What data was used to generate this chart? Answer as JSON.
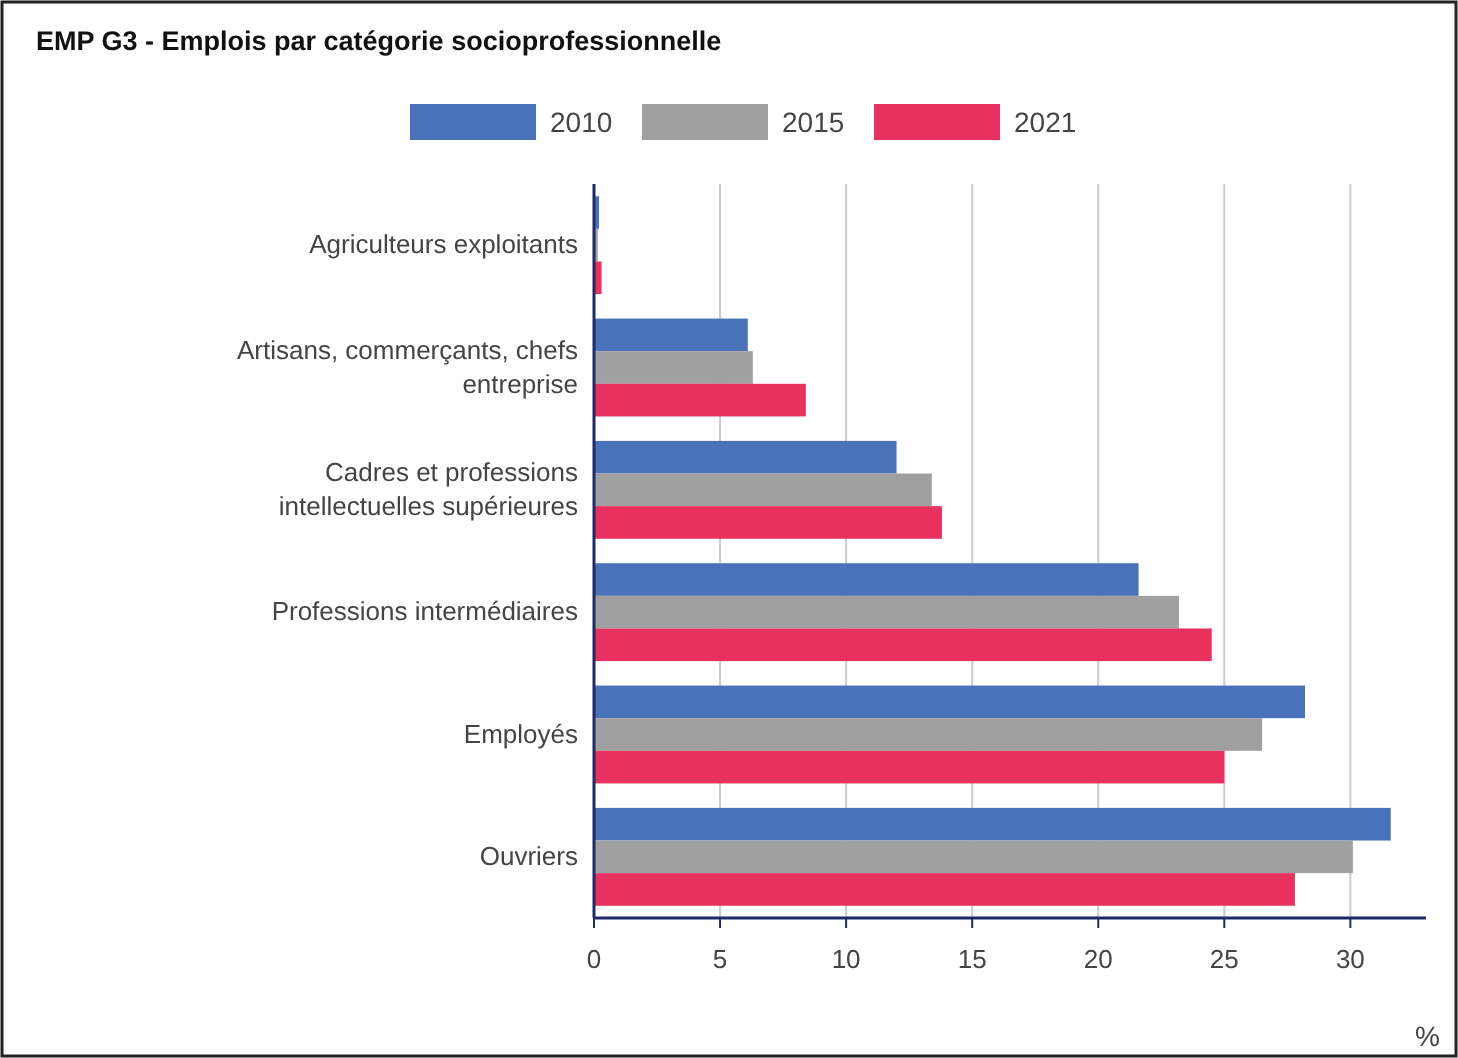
{
  "chart_data": {
    "type": "bar",
    "orientation": "horizontal",
    "title": "EMP G3 - Emplois par catégorie socioprofessionnelle",
    "xlabel": "%",
    "categories": [
      "Agriculteurs exploitants",
      "Artisans, commerçants, chefs entreprise",
      "Cadres et professions intellectuelles supérieures",
      "Professions intermédiaires",
      "Employés",
      "Ouvriers"
    ],
    "series": [
      {
        "name": "2010",
        "color": "#4a72b8",
        "values": [
          0.2,
          6.1,
          12.0,
          21.6,
          28.2,
          31.6
        ]
      },
      {
        "name": "2015",
        "color": "#a0a0a0",
        "values": [
          0.15,
          6.3,
          13.4,
          23.2,
          26.5,
          30.1
        ]
      },
      {
        "name": "2021",
        "color": "#e8315f",
        "values": [
          0.3,
          8.4,
          13.8,
          24.5,
          25.0,
          27.8
        ]
      }
    ],
    "xlim": [
      0,
      33
    ],
    "xticks": [
      0,
      5,
      10,
      15,
      20,
      25,
      30
    ],
    "grid": "x",
    "legend": "top"
  }
}
